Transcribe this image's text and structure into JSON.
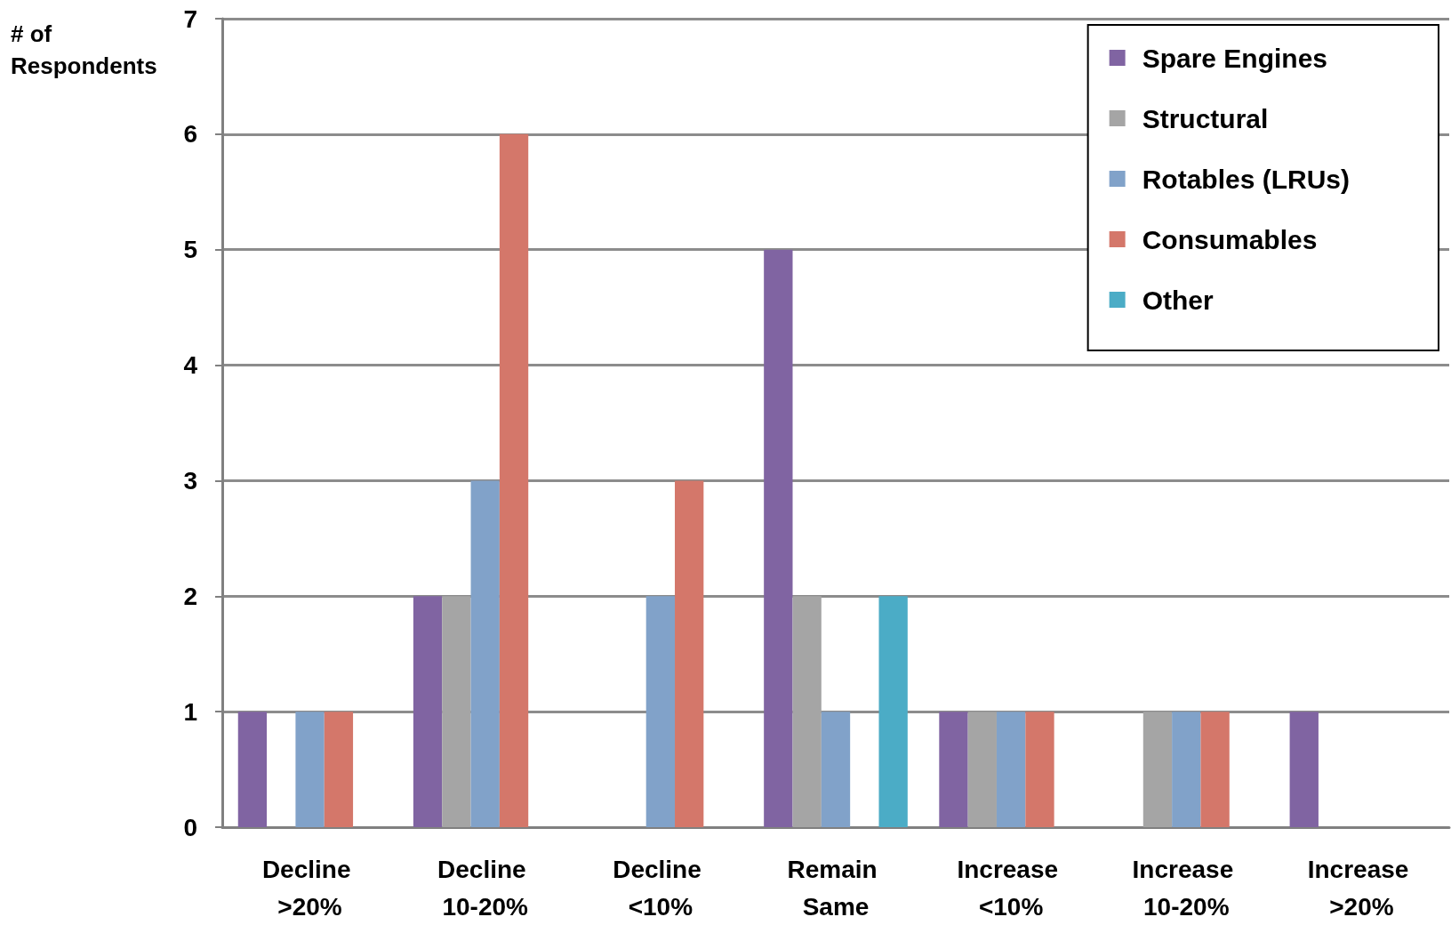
{
  "chart_data": {
    "type": "bar",
    "ylabel": "# of Respondents",
    "categories": [
      "Decline >20%",
      "Decline 10-20%",
      "Decline <10%",
      "Remain Same",
      "Increase <10%",
      "Increase 10-20%",
      "Increase >20%"
    ],
    "series": [
      {
        "name": "Spare Engines",
        "color": "#8064a2",
        "values": [
          1,
          2,
          0,
          5,
          1,
          0,
          1
        ]
      },
      {
        "name": "Structural",
        "color": "#a5a5a5",
        "values": [
          0,
          2,
          0,
          2,
          1,
          1,
          0
        ]
      },
      {
        "name": "Rotables (LRUs)",
        "color": "#81a2c9",
        "values": [
          1,
          3,
          2,
          1,
          1,
          1,
          0
        ]
      },
      {
        "name": "Consumables",
        "color": "#d4776a",
        "values": [
          1,
          6,
          3,
          0,
          1,
          1,
          0
        ]
      },
      {
        "name": "Other",
        "color": "#4bacc6",
        "values": [
          0,
          0,
          0,
          2,
          0,
          0,
          0
        ]
      }
    ],
    "ylim": [
      0,
      7
    ],
    "yticks": [
      0,
      1,
      2,
      3,
      4,
      5,
      6,
      7
    ],
    "grid": "y",
    "legend": "top right"
  }
}
